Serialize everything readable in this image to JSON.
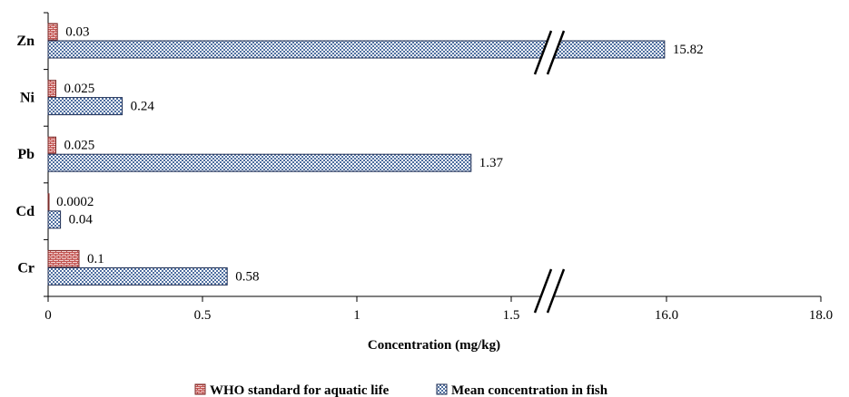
{
  "chart_data": {
    "type": "bar",
    "orientation": "horizontal",
    "categories": [
      "Zn",
      "Ni",
      "Pb",
      "Cd",
      "Cr"
    ],
    "series": [
      {
        "name": "WHO standard for aquatic life",
        "values": [
          0.03,
          0.025,
          0.025,
          0.0002,
          0.1
        ],
        "labels": [
          "0.03",
          "0.025",
          "0.025",
          "0.0002",
          "0.1"
        ],
        "color": "#c0504d",
        "pattern": "brick"
      },
      {
        "name": "Mean concentration in fish",
        "values": [
          15.82,
          0.24,
          1.37,
          0.04,
          0.58
        ],
        "labels": [
          "15.82",
          "0.24",
          "1.37",
          "0.04",
          "0.58"
        ],
        "color": "#4f6fa0",
        "pattern": "checker"
      }
    ],
    "xlabel": "Concentration (mg/kg)",
    "x_ticks": [
      {
        "label": "0",
        "value": 0
      },
      {
        "label": "0.5",
        "value": 0.5
      },
      {
        "label": "1",
        "value": 1
      },
      {
        "label": "1.5",
        "value": 1.5
      },
      {
        "label": "16.0",
        "value": 16
      },
      {
        "label": "18.0",
        "value": 18
      }
    ],
    "axis_break": {
      "from": 1.5,
      "to": 16
    },
    "grid": false,
    "legend_position": "bottom"
  }
}
